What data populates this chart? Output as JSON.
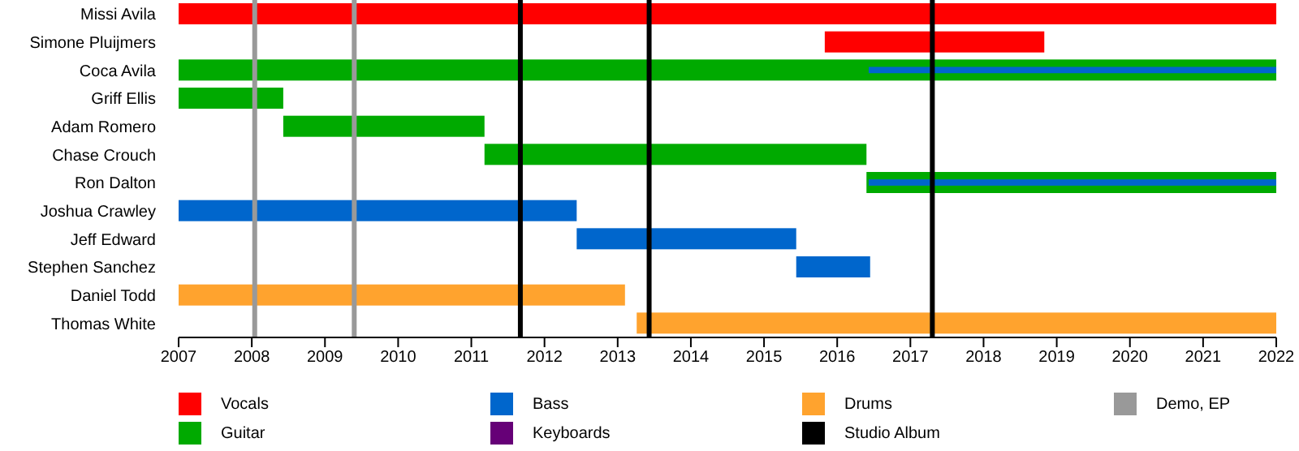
{
  "chart_data": {
    "type": "bar",
    "orientation": "horizontal",
    "legend": "bottom",
    "categories": [
      "Missi Avila",
      "Simone Pluijmers",
      "Coca Avila",
      "Griff Ellis",
      "Adam Romero",
      "Chase Crouch",
      "Ron Dalton",
      "Joshua Crawley",
      "Jeff Edward",
      "Stephen Sanchez",
      "Daniel Todd",
      "Thomas White"
    ],
    "series": [
      {
        "name": "Vocals",
        "color": "#ff0000",
        "base": [
          2007,
          2015.83,
          null,
          null,
          null,
          null,
          null,
          null,
          null,
          null,
          null,
          null
        ],
        "values": [
          15,
          3,
          null,
          null,
          null,
          null,
          null,
          null,
          null,
          null,
          null,
          null
        ]
      },
      {
        "name": "Guitar",
        "color": "#00aa00",
        "base": [
          null,
          null,
          2007,
          2007,
          2008.43,
          2011.18,
          2016.4,
          null,
          null,
          null,
          null,
          null
        ],
        "values": [
          null,
          null,
          15,
          1.43,
          2.75,
          5.22,
          5.6,
          null,
          null,
          null,
          null,
          null
        ]
      },
      {
        "name": "Bass",
        "color": "#0066cc",
        "base": [
          null,
          null,
          2016.43,
          null,
          null,
          null,
          2016.43,
          2007,
          2012.44,
          2015.44,
          null,
          null
        ],
        "values": [
          null,
          null,
          5.57,
          null,
          null,
          null,
          5.57,
          5.44,
          3,
          1.01,
          null,
          null
        ]
      },
      {
        "name": "Keyboards",
        "color": "#660077",
        "base": [
          null,
          null,
          null,
          null,
          null,
          null,
          null,
          null,
          null,
          null,
          null,
          null
        ],
        "values": [
          null,
          null,
          null,
          null,
          null,
          null,
          null,
          null,
          null,
          null,
          null,
          null
        ]
      },
      {
        "name": "Drums",
        "color": "#ffa32e",
        "base": [
          null,
          null,
          null,
          null,
          null,
          null,
          null,
          null,
          null,
          null,
          2007,
          2013.26
        ],
        "values": [
          null,
          null,
          null,
          null,
          null,
          null,
          null,
          null,
          null,
          null,
          6.1,
          8.74
        ]
      }
    ],
    "xlim": [
      2007,
      2022
    ],
    "xticks": [
      2007,
      2008,
      2009,
      2010,
      2011,
      2012,
      2013,
      2014,
      2015,
      2016,
      2017,
      2018,
      2019,
      2020,
      2021,
      2022
    ],
    "ref_lines": [
      {
        "axis": "x",
        "value": 2011.67,
        "label": "Studio Album",
        "color": "#000000"
      },
      {
        "axis": "x",
        "value": 2013.43,
        "color": "#000000"
      },
      {
        "axis": "x",
        "value": 2017.3,
        "color": "#000000"
      },
      {
        "axis": "x",
        "value": 2008.04,
        "label": "Demo, EP",
        "color": "#999999"
      },
      {
        "axis": "x",
        "value": 2009.4,
        "color": "#999999"
      }
    ]
  }
}
